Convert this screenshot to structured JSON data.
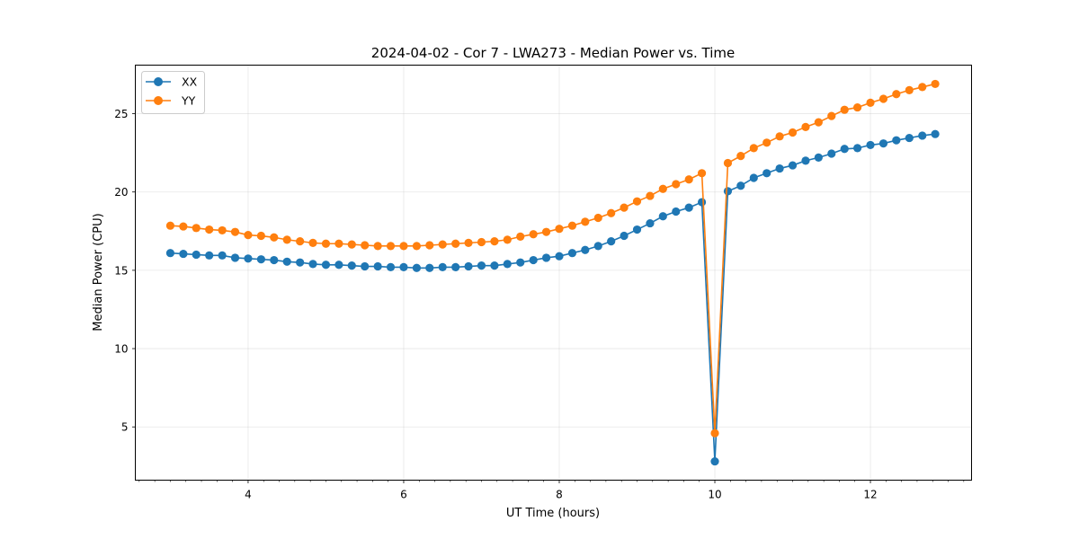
{
  "chart_data": {
    "type": "line",
    "title": "2024-04-02 - Cor 7 - LWA273 - Median Power vs. Time",
    "xlabel": "UT Time (hours)",
    "ylabel": "Median Power (CPU)",
    "xlim": [
      2.55,
      13.3
    ],
    "ylim": [
      1.6,
      28.1
    ],
    "xticks": [
      4,
      6,
      8,
      10,
      12
    ],
    "xtick_labels": [
      "4",
      "6",
      "8",
      "10",
      "12"
    ],
    "x_minor_ticks": [
      2.6,
      2.8,
      3.0,
      3.2,
      3.4,
      3.6,
      3.8,
      4.2,
      4.4,
      4.6,
      4.8,
      5.0,
      5.2,
      5.4,
      5.6,
      5.8,
      6.2,
      6.4,
      6.6,
      6.8,
      7.0,
      7.2,
      7.4,
      7.6,
      7.8,
      8.2,
      8.4,
      8.6,
      8.8,
      9.0,
      9.2,
      9.4,
      9.6,
      9.8,
      10.2,
      10.4,
      10.6,
      10.8,
      11.0,
      11.2,
      11.4,
      11.6,
      11.8,
      12.2,
      12.4,
      12.6,
      12.8,
      13.0,
      13.2
    ],
    "yticks": [
      5,
      10,
      15,
      20,
      25
    ],
    "ytick_labels": [
      "5",
      "10",
      "15",
      "20",
      "25"
    ],
    "grid": true,
    "legend_position": "top-left",
    "x": [
      3.0,
      3.167,
      3.333,
      3.5,
      3.667,
      3.833,
      4.0,
      4.167,
      4.333,
      4.5,
      4.667,
      4.833,
      5.0,
      5.167,
      5.333,
      5.5,
      5.667,
      5.833,
      6.0,
      6.167,
      6.333,
      6.5,
      6.667,
      6.833,
      7.0,
      7.167,
      7.333,
      7.5,
      7.667,
      7.833,
      8.0,
      8.167,
      8.333,
      8.5,
      8.667,
      8.833,
      9.0,
      9.167,
      9.333,
      9.5,
      9.667,
      9.833,
      10.0,
      10.167,
      10.333,
      10.5,
      10.667,
      10.833,
      11.0,
      11.167,
      11.333,
      11.5,
      11.667,
      11.833,
      12.0,
      12.167,
      12.333,
      12.5,
      12.667,
      12.833
    ],
    "series": [
      {
        "name": "XX",
        "color": "#1f77b4",
        "values": [
          16.1,
          16.05,
          16.0,
          15.95,
          15.95,
          15.8,
          15.75,
          15.7,
          15.65,
          15.55,
          15.5,
          15.4,
          15.35,
          15.35,
          15.3,
          15.25,
          15.25,
          15.2,
          15.2,
          15.15,
          15.15,
          15.2,
          15.2,
          15.25,
          15.3,
          15.3,
          15.4,
          15.5,
          15.65,
          15.8,
          15.9,
          16.1,
          16.3,
          16.55,
          16.85,
          17.2,
          17.6,
          18.0,
          18.45,
          18.75,
          19.0,
          19.35,
          2.8,
          20.05,
          20.4,
          20.9,
          21.2,
          21.5,
          21.7,
          22.0,
          22.2,
          22.45,
          22.75,
          22.8,
          23.0,
          23.1,
          23.3,
          23.45,
          23.6,
          23.7
        ]
      },
      {
        "name": "YY",
        "color": "#ff7f0e",
        "values": [
          17.85,
          17.8,
          17.7,
          17.6,
          17.55,
          17.45,
          17.25,
          17.2,
          17.1,
          16.95,
          16.85,
          16.75,
          16.7,
          16.7,
          16.65,
          16.6,
          16.55,
          16.55,
          16.55,
          16.55,
          16.6,
          16.65,
          16.7,
          16.75,
          16.8,
          16.85,
          16.95,
          17.15,
          17.3,
          17.45,
          17.65,
          17.85,
          18.1,
          18.35,
          18.65,
          19.0,
          19.4,
          19.75,
          20.2,
          20.5,
          20.8,
          21.2,
          4.6,
          21.85,
          22.3,
          22.8,
          23.15,
          23.55,
          23.8,
          24.15,
          24.45,
          24.85,
          25.25,
          25.4,
          25.7,
          25.95,
          26.25,
          26.5,
          26.7,
          26.9
        ]
      }
    ]
  }
}
